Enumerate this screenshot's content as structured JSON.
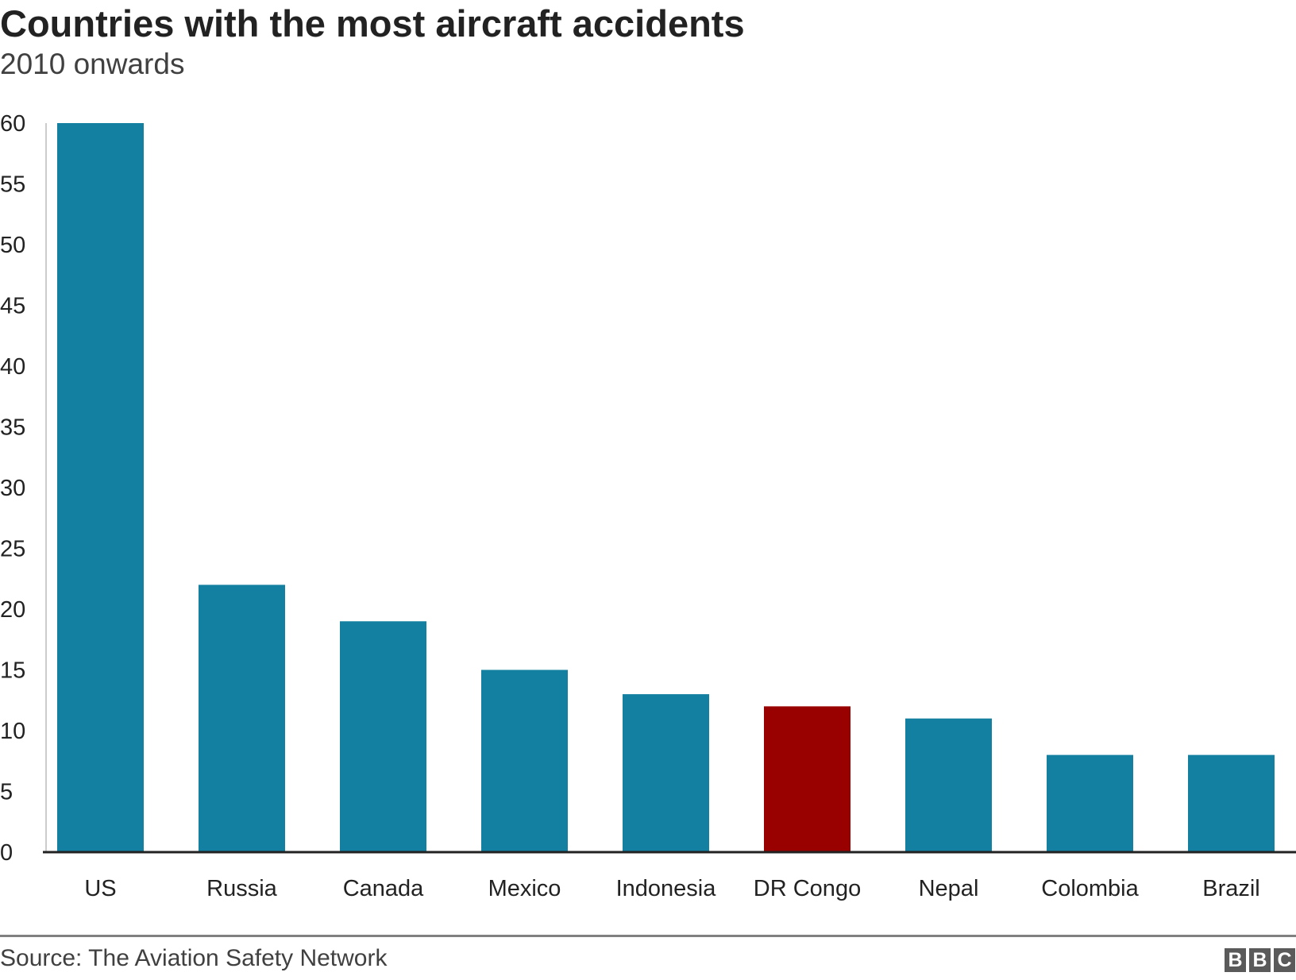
{
  "chart_data": {
    "type": "bar",
    "title": "Countries with the most aircraft accidents",
    "subtitle": "2010 onwards",
    "xlabel": "",
    "ylabel": "",
    "categories": [
      "US",
      "Russia",
      "Canada",
      "Mexico",
      "Indonesia",
      "DR Congo",
      "Nepal",
      "Colombia",
      "Brazil"
    ],
    "values": [
      60,
      22,
      19,
      15,
      13,
      12,
      11,
      8,
      8
    ],
    "highlight": "DR Congo",
    "ylim": [
      0,
      60
    ],
    "yticks": [
      0,
      5,
      10,
      15,
      20,
      25,
      30,
      35,
      40,
      45,
      50,
      55,
      60
    ],
    "grid": false,
    "colors": {
      "default": "#1380a1",
      "highlight": "#990000"
    }
  },
  "footer": {
    "source": "Source: The Aviation Safety Network",
    "logo": [
      "B",
      "B",
      "C"
    ]
  }
}
